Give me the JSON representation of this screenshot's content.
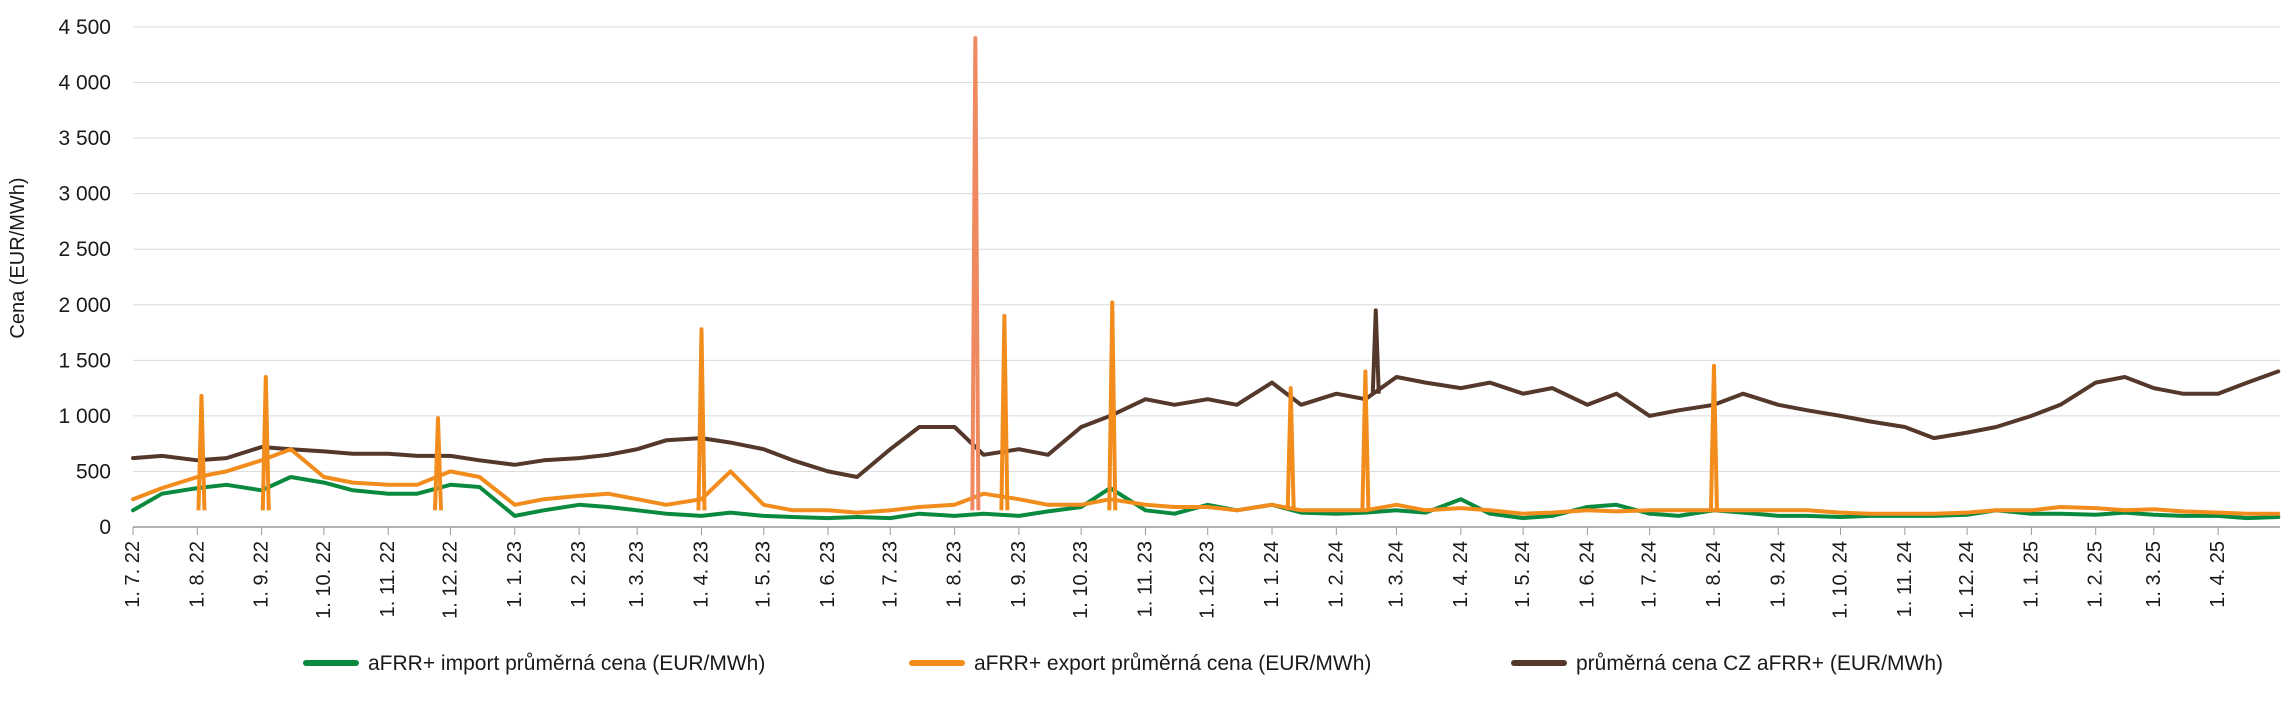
{
  "chart_data": {
    "type": "line",
    "title": "",
    "xlabel": "",
    "ylabel": "Cena (EUR/MWh)",
    "ylim": [
      0,
      4500
    ],
    "y_ticks": [
      {
        "value": 0,
        "label": "0"
      },
      {
        "value": 500,
        "label": "500"
      },
      {
        "value": 1000,
        "label": "1 000"
      },
      {
        "value": 1500,
        "label": "1 500"
      },
      {
        "value": 2000,
        "label": "2 000"
      },
      {
        "value": 2500,
        "label": "2 500"
      },
      {
        "value": 3000,
        "label": "3 000"
      },
      {
        "value": 3500,
        "label": "3 500"
      },
      {
        "value": 4000,
        "label": "4 000"
      },
      {
        "value": 4500,
        "label": "4 500"
      }
    ],
    "x_ticks": [
      "1. 7. 22",
      "1. 8. 22",
      "1. 9. 22",
      "1. 10. 22",
      "1. 11. 22",
      "1. 12. 22",
      "1. 1. 23",
      "1. 2. 23",
      "1. 3. 23",
      "1. 4. 23",
      "1. 5. 23",
      "1. 6. 23",
      "1. 7. 23",
      "1. 8. 23",
      "1. 9. 23",
      "1. 10. 23",
      "1. 11. 23",
      "1. 12. 23",
      "1. 1. 24",
      "1. 2. 24",
      "1. 3. 24",
      "1. 4. 24",
      "1. 5. 24",
      "1. 6. 24",
      "1. 7. 24",
      "1. 8. 24",
      "1. 9. 24",
      "1. 10. 24",
      "1. 11. 24",
      "1. 12. 24",
      "1. 1. 25",
      "1. 2. 25",
      "1. 3. 25",
      "1. 4. 25"
    ],
    "grid": true,
    "legend_position": "bottom",
    "series": [
      {
        "name": "aFRR+ import průměrná cena (EUR/MWh)",
        "color": "#0a8a3f",
        "x": [
          "1. 7. 22",
          "15. 7. 22",
          "1. 8. 22",
          "15. 8. 22",
          "1. 9. 22",
          "15. 9. 22",
          "1. 10. 22",
          "15. 10. 22",
          "1. 11. 22",
          "15. 11. 22",
          "1. 12. 22",
          "15. 12. 22",
          "1. 1. 23",
          "15. 1. 23",
          "1. 2. 23",
          "15. 2. 23",
          "1. 3. 23",
          "15. 3. 23",
          "1. 4. 23",
          "15. 4. 23",
          "1. 5. 23",
          "15. 5. 23",
          "1. 6. 23",
          "15. 6. 23",
          "1. 7. 23",
          "15. 7. 23",
          "1. 8. 23",
          "15. 8. 23",
          "1. 9. 23",
          "15. 9. 23",
          "1. 10. 23",
          "15. 10. 23",
          "1. 11. 23",
          "15. 11. 23",
          "1. 12. 23",
          "15. 12. 23",
          "1. 1. 24",
          "15. 1. 24",
          "1. 2. 24",
          "15. 2. 24",
          "1. 3. 24",
          "15. 3. 24",
          "1. 4. 24",
          "15. 4. 24",
          "1. 5. 24",
          "15. 5. 24",
          "1. 6. 24",
          "15. 6. 24",
          "1. 7. 24",
          "15. 7. 24",
          "1. 8. 24",
          "15. 8. 24",
          "1. 9. 24",
          "15. 9. 24",
          "1. 10. 24",
          "15. 10. 24",
          "1. 11. 24",
          "15. 11. 24",
          "1. 12. 24",
          "15. 12. 24",
          "1. 1. 25",
          "15. 1. 25",
          "1. 2. 25",
          "15. 2. 25",
          "1. 3. 25",
          "15. 3. 25",
          "1. 4. 25",
          "15. 4. 25",
          "30. 4. 25"
        ],
        "values": [
          150,
          300,
          350,
          380,
          330,
          450,
          400,
          330,
          300,
          300,
          380,
          360,
          100,
          150,
          200,
          180,
          150,
          120,
          100,
          130,
          100,
          90,
          80,
          90,
          80,
          120,
          100,
          120,
          100,
          140,
          180,
          350,
          150,
          120,
          200,
          150,
          200,
          130,
          120,
          130,
          150,
          130,
          250,
          120,
          80,
          100,
          180,
          200,
          120,
          100,
          150,
          130,
          100,
          100,
          90,
          100,
          100,
          100,
          110,
          150,
          120,
          120,
          110,
          130,
          110,
          100,
          100,
          80,
          90
        ]
      },
      {
        "name": "aFRR+ export průměrná cena (EUR/MWh)",
        "color": "#f28c1c",
        "x": [
          "1. 7. 22",
          "15. 7. 22",
          "1. 8. 22",
          "15. 8. 22",
          "1. 9. 22",
          "15. 9. 22",
          "1. 10. 22",
          "15. 10. 22",
          "1. 11. 22",
          "15. 11. 22",
          "1. 12. 22",
          "15. 12. 22",
          "1. 1. 23",
          "15. 1. 23",
          "1. 2. 23",
          "15. 2. 23",
          "1. 3. 23",
          "15. 3. 23",
          "1. 4. 23",
          "15. 4. 23",
          "1. 5. 23",
          "15. 5. 23",
          "1. 6. 23",
          "15. 6. 23",
          "1. 7. 23",
          "15. 7. 23",
          "1. 8. 23",
          "15. 8. 23",
          "1. 9. 23",
          "15. 9. 23",
          "1. 10. 23",
          "15. 10. 23",
          "1. 11. 23",
          "15. 11. 23",
          "1. 12. 23",
          "15. 12. 23",
          "1. 1. 24",
          "15. 1. 24",
          "1. 2. 24",
          "15. 2. 24",
          "1. 3. 24",
          "15. 3. 24",
          "1. 4. 24",
          "15. 4. 24",
          "1. 5. 24",
          "15. 5. 24",
          "1. 6. 24",
          "15. 6. 24",
          "1. 7. 24",
          "15. 7. 24",
          "1. 8. 24",
          "15. 8. 24",
          "1. 9. 24",
          "15. 9. 24",
          "1. 10. 24",
          "15. 10. 24",
          "1. 11. 24",
          "15. 11. 24",
          "1. 12. 24",
          "15. 12. 24",
          "1. 1. 25",
          "15. 1. 25",
          "1. 2. 25",
          "15. 2. 25",
          "1. 3. 25",
          "15. 3. 25",
          "1. 4. 25",
          "15. 4. 25",
          "30. 4. 25"
        ],
        "values": [
          250,
          350,
          450,
          500,
          600,
          700,
          450,
          400,
          380,
          380,
          500,
          450,
          200,
          250,
          280,
          300,
          250,
          200,
          250,
          500,
          200,
          150,
          150,
          130,
          150,
          180,
          200,
          300,
          250,
          200,
          200,
          250,
          200,
          180,
          180,
          150,
          200,
          150,
          150,
          150,
          200,
          150,
          170,
          150,
          120,
          130,
          150,
          140,
          150,
          150,
          150,
          150,
          150,
          150,
          130,
          120,
          120,
          120,
          130,
          150,
          150,
          180,
          170,
          150,
          160,
          140,
          130,
          120,
          120
        ]
      },
      {
        "name": "průměrná cena CZ aFRR+ (EUR/MWh)",
        "color": "#54382b",
        "x": [
          "1. 7. 22",
          "15. 7. 22",
          "1. 8. 22",
          "15. 8. 22",
          "1. 9. 22",
          "15. 9. 22",
          "1. 10. 22",
          "15. 10. 22",
          "1. 11. 22",
          "15. 11. 22",
          "1. 12. 22",
          "15. 12. 22",
          "1. 1. 23",
          "15. 1. 23",
          "1. 2. 23",
          "15. 2. 23",
          "1. 3. 23",
          "15. 3. 23",
          "1. 4. 23",
          "15. 4. 23",
          "1. 5. 23",
          "15. 5. 23",
          "1. 6. 23",
          "15. 6. 23",
          "1. 7. 23",
          "15. 7. 23",
          "1. 8. 23",
          "15. 8. 23",
          "1. 9. 23",
          "15. 9. 23",
          "1. 10. 23",
          "15. 10. 23",
          "1. 11. 23",
          "15. 11. 23",
          "1. 12. 23",
          "15. 12. 23",
          "1. 1. 24",
          "15. 1. 24",
          "1. 2. 24",
          "15. 2. 24",
          "1. 3. 24",
          "15. 3. 24",
          "1. 4. 24",
          "15. 4. 24",
          "1. 5. 24",
          "15. 5. 24",
          "1. 6. 24",
          "15. 6. 24",
          "1. 7. 24",
          "15. 7. 24",
          "1. 8. 24",
          "15. 8. 24",
          "1. 9. 24",
          "15. 9. 24",
          "1. 10. 24",
          "15. 10. 24",
          "1. 11. 24",
          "15. 11. 24",
          "1. 12. 24",
          "15. 12. 24",
          "1. 1. 25",
          "15. 1. 25",
          "1. 2. 25",
          "15. 2. 25",
          "1. 3. 25",
          "15. 3. 25",
          "1. 4. 25",
          "15. 4. 25",
          "30. 4. 25"
        ],
        "values": [
          620,
          640,
          600,
          620,
          720,
          700,
          680,
          660,
          660,
          640,
          640,
          600,
          560,
          600,
          620,
          650,
          700,
          780,
          800,
          760,
          700,
          600,
          500,
          450,
          700,
          900,
          900,
          650,
          700,
          650,
          900,
          1000,
          1150,
          1100,
          1150,
          1100,
          1300,
          1100,
          1200,
          1150,
          1350,
          1300,
          1250,
          1300,
          1200,
          1250,
          1100,
          1200,
          1000,
          1050,
          1100,
          1200,
          1100,
          1050,
          1000,
          950,
          900,
          800,
          850,
          900,
          1000,
          1100,
          1300,
          1350,
          1250,
          1200,
          1200,
          1300,
          1400
        ]
      }
    ],
    "annotations": [
      {
        "series": "aFRR+ export průměrná cena (EUR/MWh)",
        "x": "11. 8. 23",
        "y": 4400
      },
      {
        "series": "aFRR+ export průměrná cena (EUR/MWh)",
        "x": "16. 10. 23",
        "y": 2020
      },
      {
        "series": "aFRR+ export průměrná cena (EUR/MWh)",
        "x": "25. 8. 23",
        "y": 1900
      },
      {
        "series": "aFRR+ export průměrná cena (EUR/MWh)",
        "x": "1. 4. 23",
        "y": 1780
      },
      {
        "series": "aFRR+ export průměrná cena (EUR/MWh)",
        "x": "3. 9. 22",
        "y": 1350
      },
      {
        "series": "aFRR+ export průměrná cena (EUR/MWh)",
        "x": "3. 8. 22",
        "y": 1180
      },
      {
        "series": "aFRR+ export průměrná cena (EUR/MWh)",
        "x": "25. 11. 22",
        "y": 980
      },
      {
        "series": "aFRR+ export průměrná cena (EUR/MWh)",
        "x": "10. 1. 24",
        "y": 1250
      },
      {
        "series": "aFRR+ export průměrná cena (EUR/MWh)",
        "x": "15. 2. 24",
        "y": 1400
      },
      {
        "series": "aFRR+ export průměrná cena (EUR/MWh)",
        "x": "1. 8. 24",
        "y": 1450
      },
      {
        "series": "průměrná cena CZ aFRR+ (EUR/MWh)",
        "x": "20. 2. 24",
        "y": 1950
      }
    ]
  }
}
